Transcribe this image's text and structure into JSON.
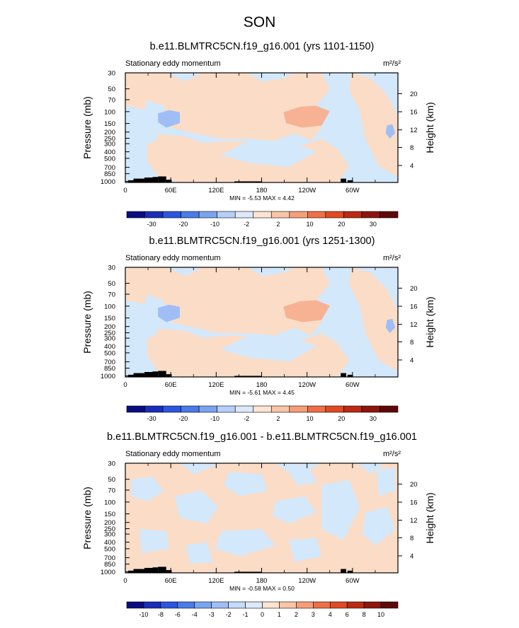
{
  "main_title": "SON",
  "colors": {
    "bg_light_blue": "#d3e8fb",
    "light_orange": "#fbdcc6",
    "medium_blue": "#9fbef5",
    "medium_orange": "#f7b193"
  },
  "chart_data": [
    {
      "type": "heatmap",
      "title": "b.e11.BLMTRC5CN.f19_g16.001 (yrs 1101-1150)",
      "left_label": "Stationary eddy momentum",
      "units": "m²/s²",
      "ylabel": "Pressure (mb)",
      "ylabel_right": "Height (km)",
      "pressure_ticks": [
        "30",
        "50",
        "70",
        "100",
        "150",
        "200",
        "250",
        "300",
        "400",
        "500",
        "700",
        "850",
        "1000"
      ],
      "height_ticks": [
        "20",
        "16",
        "12",
        "8",
        "4"
      ],
      "lon_ticks": [
        "0",
        "60E",
        "120E",
        "180",
        "120W",
        "60W"
      ],
      "min_max": "MIN = -5.53  MAX = 4.42",
      "colorbar_labels": [
        "-30",
        "-20",
        "-10",
        "-2",
        "2",
        "10",
        "20",
        "30"
      ],
      "colorbar_colors": [
        "#0a0d7e",
        "#1a2eb8",
        "#2b56de",
        "#4a7be6",
        "#7aa4f0",
        "#b6cffa",
        "#dde9fb",
        "#fce3d2",
        "#f9c4a7",
        "#f59e78",
        "#ee7046",
        "#e14a23",
        "#bb2a14",
        "#8c160c",
        "#5f0707"
      ]
    },
    {
      "type": "heatmap",
      "title": "b.e11.BLMTRC5CN.f19_g16.001 (yrs 1251-1300)",
      "left_label": "Stationary eddy momentum",
      "units": "m²/s²",
      "ylabel": "Pressure (mb)",
      "ylabel_right": "Height (km)",
      "pressure_ticks": [
        "30",
        "50",
        "70",
        "100",
        "150",
        "200",
        "250",
        "300",
        "400",
        "500",
        "700",
        "850",
        "1000"
      ],
      "height_ticks": [
        "20",
        "16",
        "12",
        "8",
        "4"
      ],
      "lon_ticks": [
        "0",
        "60E",
        "120E",
        "180",
        "120W",
        "60W"
      ],
      "min_max": "MIN = -5.61  MAX = 4.45",
      "colorbar_labels": [
        "-30",
        "-20",
        "-10",
        "-2",
        "2",
        "10",
        "20",
        "30"
      ],
      "colorbar_colors": [
        "#0a0d7e",
        "#1a2eb8",
        "#2b56de",
        "#4a7be6",
        "#7aa4f0",
        "#b6cffa",
        "#dde9fb",
        "#fce3d2",
        "#f9c4a7",
        "#f59e78",
        "#ee7046",
        "#e14a23",
        "#bb2a14",
        "#8c160c",
        "#5f0707"
      ]
    },
    {
      "type": "heatmap",
      "title": "b.e11.BLMTRC5CN.f19_g16.001 - b.e11.BLMTRC5CN.f19_g16.001",
      "left_label": "Stationary eddy momentum",
      "units": "m²/s²",
      "ylabel": "Pressure (mb)",
      "ylabel_right": "Height (km)",
      "pressure_ticks": [
        "30",
        "50",
        "70",
        "100",
        "150",
        "200",
        "250",
        "300",
        "400",
        "500",
        "700",
        "850",
        "1000"
      ],
      "height_ticks": [
        "20",
        "16",
        "12",
        "8",
        "4"
      ],
      "lon_ticks": [
        "0",
        "60E",
        "120E",
        "180",
        "120W",
        "60W"
      ],
      "min_max": "MIN = -0.58  MAX = 0.50",
      "colorbar_labels": [
        "-10",
        "-8",
        "-6",
        "-4",
        "-3",
        "-2",
        "-1",
        "0",
        "1",
        "2",
        "3",
        "4",
        "6",
        "8",
        "10"
      ],
      "colorbar_colors": [
        "#0a0d7e",
        "#1a2eb8",
        "#2b56de",
        "#4a7be6",
        "#7aa4f0",
        "#9fbef5",
        "#c6dbf9",
        "#dde9fb",
        "#fce3d2",
        "#f9c4a7",
        "#f59e78",
        "#ee7046",
        "#e14a23",
        "#bb2a14",
        "#8c160c",
        "#5f0707"
      ]
    }
  ]
}
